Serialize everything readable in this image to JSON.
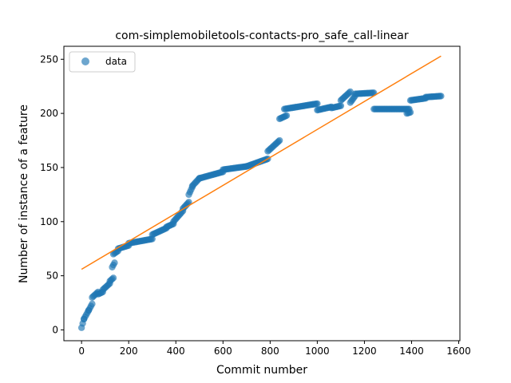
{
  "chart_data": {
    "type": "scatter",
    "title": "com-simplemobiletools-contacts-pro_safe_call-linear",
    "xlabel": "Commit number",
    "ylabel": "Number of instance of a feature",
    "xlim": [
      -75,
      1605
    ],
    "ylim": [
      -10,
      262
    ],
    "xticks": [
      0,
      200,
      400,
      600,
      800,
      1000,
      1200,
      1400,
      1600
    ],
    "yticks": [
      0,
      50,
      100,
      150,
      200,
      250
    ],
    "legend": {
      "label": "data",
      "position": "top-left"
    },
    "colors": {
      "data": "#1f77b4",
      "fit": "#ff7f0e"
    },
    "fit_line": {
      "x": [
        0,
        1525
      ],
      "y": [
        56,
        253
      ]
    },
    "segments": [
      {
        "x_start": 0,
        "x_end": 10,
        "y_start": 2,
        "y_end": 10
      },
      {
        "x_start": 10,
        "x_end": 30,
        "y_start": 10,
        "y_end": 18
      },
      {
        "x_start": 30,
        "x_end": 45,
        "y_start": 18,
        "y_end": 24
      },
      {
        "x_start": 45,
        "x_end": 70,
        "y_start": 30,
        "y_end": 35
      },
      {
        "x_start": 70,
        "x_end": 90,
        "y_start": 33,
        "y_end": 35
      },
      {
        "x_start": 90,
        "x_end": 120,
        "y_start": 37,
        "y_end": 43
      },
      {
        "x_start": 120,
        "x_end": 135,
        "y_start": 45,
        "y_end": 48
      },
      {
        "x_start": 130,
        "x_end": 140,
        "y_start": 58,
        "y_end": 62
      },
      {
        "x_start": 135,
        "x_end": 155,
        "y_start": 70,
        "y_end": 73
      },
      {
        "x_start": 155,
        "x_end": 200,
        "y_start": 75,
        "y_end": 78
      },
      {
        "x_start": 200,
        "x_end": 300,
        "y_start": 80,
        "y_end": 84
      },
      {
        "x_start": 300,
        "x_end": 360,
        "y_start": 88,
        "y_end": 94
      },
      {
        "x_start": 360,
        "x_end": 390,
        "y_start": 95,
        "y_end": 98
      },
      {
        "x_start": 390,
        "x_end": 430,
        "y_start": 100,
        "y_end": 110
      },
      {
        "x_start": 430,
        "x_end": 455,
        "y_start": 112,
        "y_end": 118
      },
      {
        "x_start": 455,
        "x_end": 470,
        "y_start": 125,
        "y_end": 132
      },
      {
        "x_start": 470,
        "x_end": 500,
        "y_start": 133,
        "y_end": 140
      },
      {
        "x_start": 500,
        "x_end": 600,
        "y_start": 140,
        "y_end": 146
      },
      {
        "x_start": 600,
        "x_end": 700,
        "y_start": 148,
        "y_end": 151
      },
      {
        "x_start": 700,
        "x_end": 790,
        "y_start": 151,
        "y_end": 158
      },
      {
        "x_start": 790,
        "x_end": 840,
        "y_start": 165,
        "y_end": 175
      },
      {
        "x_start": 840,
        "x_end": 870,
        "y_start": 195,
        "y_end": 198
      },
      {
        "x_start": 860,
        "x_end": 1000,
        "y_start": 204,
        "y_end": 209
      },
      {
        "x_start": 1000,
        "x_end": 1060,
        "y_start": 203,
        "y_end": 206
      },
      {
        "x_start": 1060,
        "x_end": 1100,
        "y_start": 205,
        "y_end": 207
      },
      {
        "x_start": 1100,
        "x_end": 1140,
        "y_start": 212,
        "y_end": 220
      },
      {
        "x_start": 1140,
        "x_end": 1160,
        "y_start": 210,
        "y_end": 216
      },
      {
        "x_start": 1160,
        "x_end": 1240,
        "y_start": 218,
        "y_end": 219
      },
      {
        "x_start": 1240,
        "x_end": 1390,
        "y_start": 204,
        "y_end": 204
      },
      {
        "x_start": 1380,
        "x_end": 1395,
        "y_start": 200,
        "y_end": 201
      },
      {
        "x_start": 1395,
        "x_end": 1460,
        "y_start": 212,
        "y_end": 214
      },
      {
        "x_start": 1460,
        "x_end": 1525,
        "y_start": 215,
        "y_end": 216
      }
    ]
  }
}
